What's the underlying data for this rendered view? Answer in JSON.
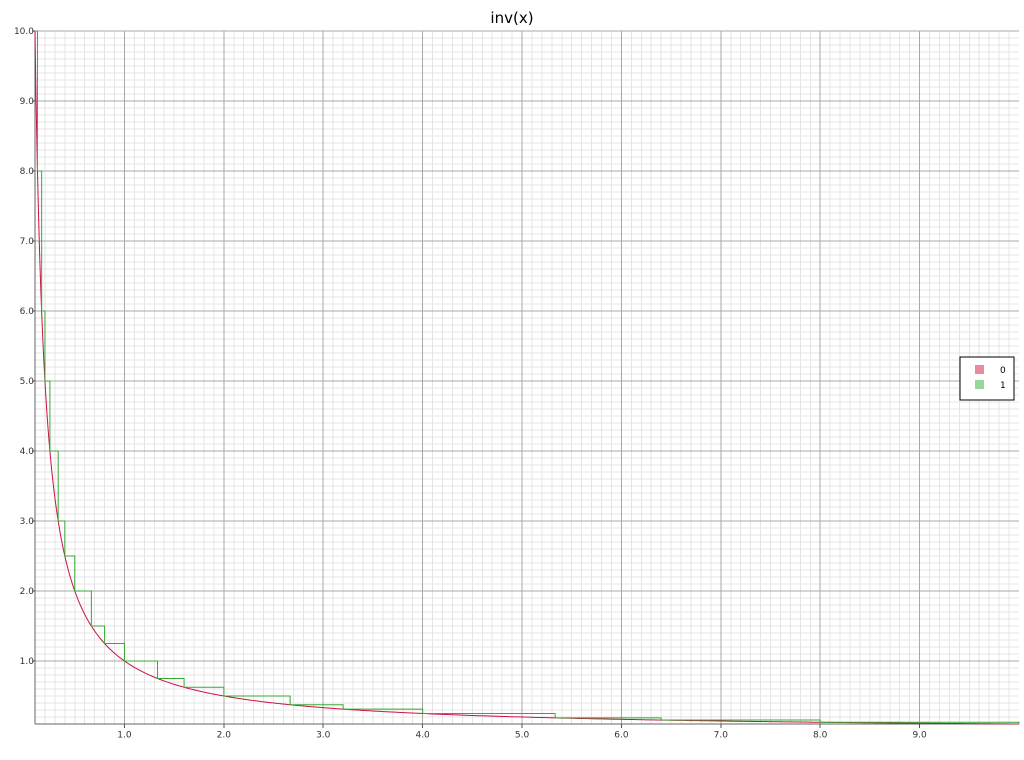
{
  "chart_data": {
    "type": "line",
    "title": "inv(x)",
    "xlabel": "",
    "ylabel": "",
    "xlim": [
      0.1,
      10.0
    ],
    "ylim": [
      0.1,
      10.0
    ],
    "x_ticks": [
      "1.0",
      "2.0",
      "3.0",
      "4.0",
      "5.0",
      "6.0",
      "7.0",
      "8.0",
      "9.0"
    ],
    "y_ticks": [
      "1.0",
      "2.0",
      "3.0",
      "4.0",
      "5.0",
      "6.0",
      "7.0",
      "8.0",
      "9.0",
      "10.0"
    ],
    "grid": {
      "major": true,
      "minor": true
    },
    "legend_position": "right",
    "series": [
      {
        "name": "0",
        "color": "#cc1144",
        "legend_color": "#e88aa0",
        "function": "1/x",
        "style": "smooth"
      },
      {
        "name": "1",
        "color": "#33aa33",
        "legend_color": "#99d699",
        "style": "step",
        "points": [
          [
            0.1,
            10.0
          ],
          [
            0.125,
            8.0
          ],
          [
            0.167,
            6.0
          ],
          [
            0.2,
            5.0
          ],
          [
            0.25,
            4.0
          ],
          [
            0.333,
            3.0
          ],
          [
            0.4,
            2.5
          ],
          [
            0.5,
            2.0
          ],
          [
            0.667,
            1.5
          ],
          [
            0.8,
            1.25
          ],
          [
            1.0,
            1.0
          ],
          [
            1.333,
            0.75
          ],
          [
            1.6,
            0.625
          ],
          [
            2.0,
            0.5
          ],
          [
            2.667,
            0.375
          ],
          [
            3.2,
            0.3125
          ],
          [
            4.0,
            0.25
          ],
          [
            5.333,
            0.1875
          ],
          [
            6.4,
            0.15625
          ],
          [
            8.0,
            0.125
          ],
          [
            10.0,
            0.1
          ]
        ]
      }
    ]
  }
}
